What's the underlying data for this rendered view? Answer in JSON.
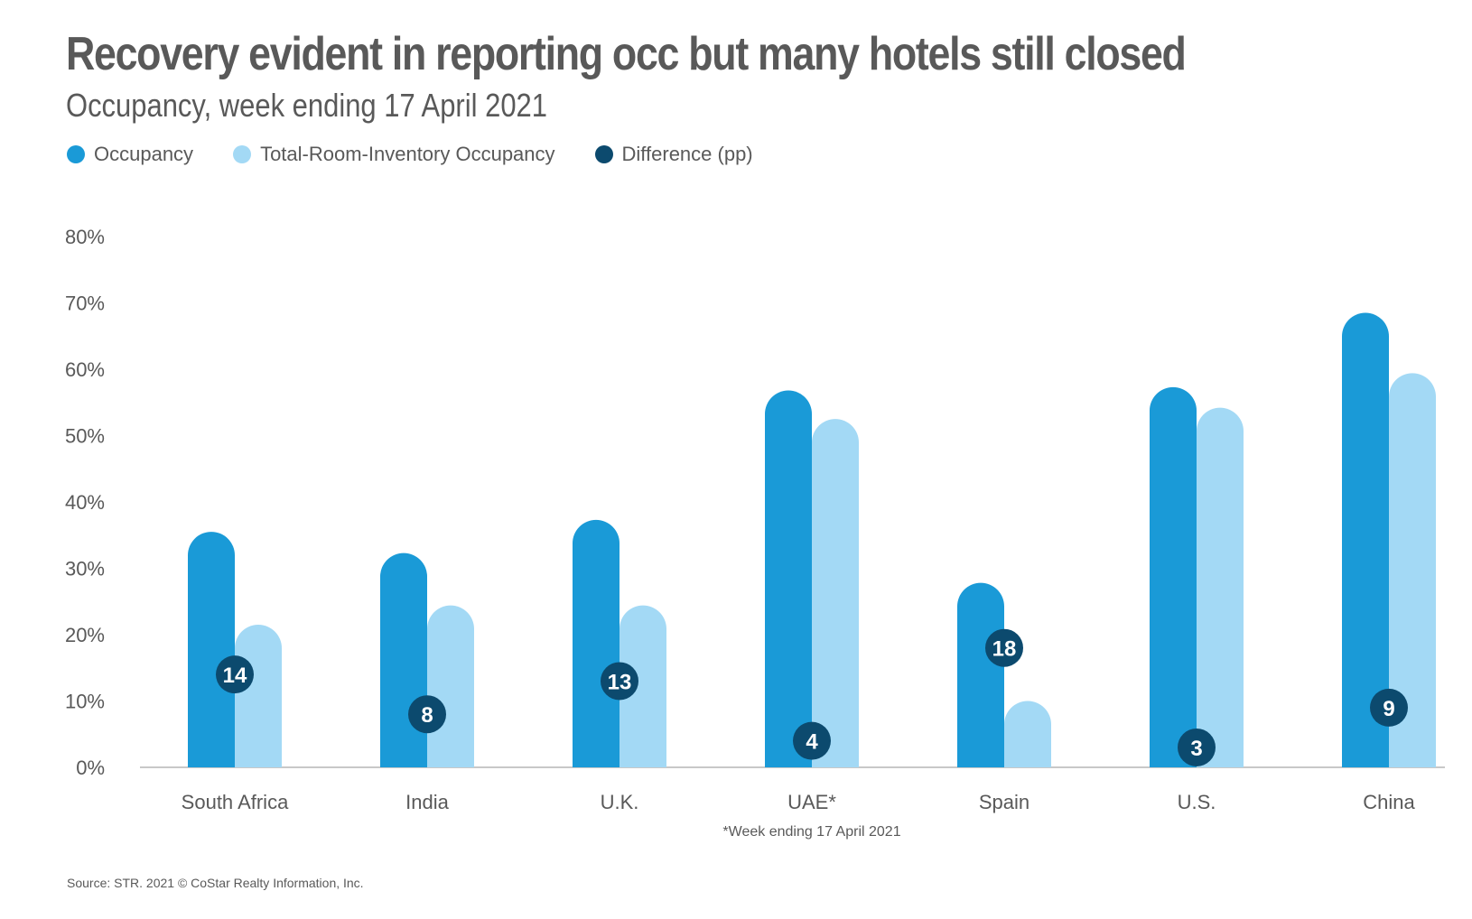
{
  "chart_data": {
    "type": "bar",
    "title": "Recovery evident in reporting occ but many hotels still closed",
    "subtitle": "Occupancy, week ending 17 April 2021",
    "categories": [
      "South Africa",
      "India",
      "U.K.",
      "UAE*",
      "Spain",
      "U.S.",
      "China"
    ],
    "series": [
      {
        "name": "Occupancy",
        "color": "#1a9ad7",
        "values": [
          35.5,
          32.3,
          37.3,
          56.8,
          27.8,
          57.3,
          68.5
        ]
      },
      {
        "name": "Total-Room-Inventory Occupancy",
        "color": "#a3d9f5",
        "values": [
          21.5,
          24.4,
          24.4,
          52.5,
          10.0,
          54.2,
          59.4
        ]
      },
      {
        "name": "Difference (pp)",
        "color": "#0c4a6e",
        "values": [
          14,
          8,
          13,
          4,
          18,
          3,
          9
        ]
      }
    ],
    "ylim": [
      0,
      80
    ],
    "yticks": [
      0,
      10,
      20,
      30,
      40,
      50,
      60,
      70,
      80
    ],
    "ytick_labels": [
      "0%",
      "10%",
      "20%",
      "30%",
      "40%",
      "50%",
      "60%",
      "70%",
      "80%"
    ],
    "xlabel": "",
    "ylabel": "",
    "legend_position": "top-left",
    "grid": false,
    "annotations": [
      {
        "category": "UAE*",
        "text": "*Week ending 17 April 2021"
      }
    ],
    "source": "Source: STR. 2021 © CoStar Realty Information, Inc."
  }
}
